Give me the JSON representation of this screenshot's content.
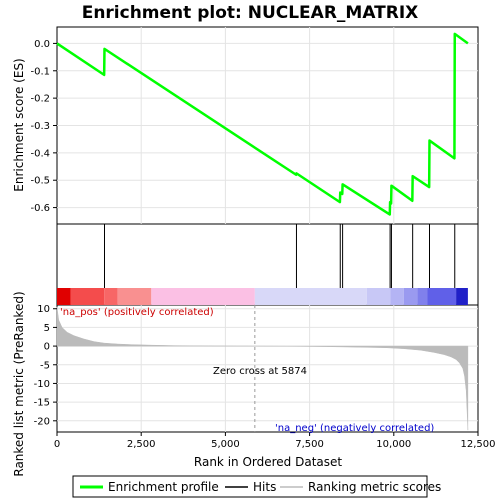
{
  "chart_data": {
    "type": "line",
    "title": "Enrichment plot: NUCLEAR_MATRIX",
    "xlabel": "Rank in Ordered Dataset",
    "xlim": [
      0,
      12500
    ],
    "x_ticks": [
      0,
      2500,
      5000,
      7500,
      10000,
      12500
    ],
    "x_tick_labels": [
      "0",
      "2,500",
      "5,000",
      "7,500",
      "10,000",
      "12,500"
    ],
    "es_panel": {
      "ylabel": "Enrichment score (ES)",
      "ylim": [
        -0.66,
        0.06
      ],
      "y_ticks": [
        0.0,
        -0.1,
        -0.2,
        -0.3,
        -0.4,
        -0.5,
        -0.6
      ],
      "y_tick_labels": [
        "0.0",
        "-0.1",
        "-0.2",
        "-0.3",
        "-0.4",
        "-0.5",
        "-0.6"
      ],
      "series": [
        {
          "name": "Enrichment profile",
          "color": "#00ff00",
          "x": [
            0,
            1400,
            1410,
            7100,
            7110,
            8400,
            8410,
            8470,
            8480,
            9880,
            9890,
            9920,
            9930,
            10550,
            10560,
            11050,
            11060,
            11800,
            11810,
            12200
          ],
          "y": [
            0.0,
            -0.115,
            -0.02,
            -0.48,
            -0.475,
            -0.58,
            -0.545,
            -0.55,
            -0.515,
            -0.625,
            -0.58,
            -0.585,
            -0.52,
            -0.575,
            -0.485,
            -0.525,
            -0.355,
            -0.42,
            0.035,
            0.0
          ]
        }
      ]
    },
    "hits": {
      "name": "Hits",
      "color": "#000000",
      "x": [
        1410,
        7110,
        8410,
        8480,
        9890,
        9930,
        10560,
        11060,
        11810
      ]
    },
    "rank_bar": {
      "segments": [
        {
          "from": 0,
          "to": 400,
          "color": "#e00000"
        },
        {
          "from": 400,
          "to": 1400,
          "color": "#f44c4c"
        },
        {
          "from": 1400,
          "to": 1800,
          "color": "#f76666"
        },
        {
          "from": 1800,
          "to": 2800,
          "color": "#f99090"
        },
        {
          "from": 2800,
          "to": 5874,
          "color": "#fbc0e4"
        },
        {
          "from": 5874,
          "to": 9200,
          "color": "#d8d8f8"
        },
        {
          "from": 9200,
          "to": 9900,
          "color": "#c8c8f6"
        },
        {
          "from": 9900,
          "to": 10300,
          "color": "#b4b4f4"
        },
        {
          "from": 10300,
          "to": 10700,
          "color": "#9a9af0"
        },
        {
          "from": 10700,
          "to": 11000,
          "color": "#8080ec"
        },
        {
          "from": 11000,
          "to": 11850,
          "color": "#6060e8"
        },
        {
          "from": 11850,
          "to": 12200,
          "color": "#2020c8"
        }
      ]
    },
    "metric_panel": {
      "ylabel": "Ranked list metric (PreRanked)",
      "ylim": [
        -23,
        11
      ],
      "y_ticks": [
        10,
        5,
        0,
        -5,
        -10,
        -15,
        -20
      ],
      "y_tick_labels": [
        "10",
        "5",
        "0",
        "-5",
        "-10",
        "-15",
        "-20"
      ],
      "series": [
        {
          "name": "Ranking metric scores",
          "color": "#bbbbbb",
          "x": [
            0,
            50,
            150,
            300,
            500,
            800,
            1100,
            1400,
            1800,
            2200,
            2800,
            3500,
            4500,
            5874,
            7000,
            8000,
            9000,
            9800,
            10300,
            10800,
            11200,
            11500,
            11700,
            11850,
            11950,
            12050,
            12100,
            12150,
            12200
          ],
          "y": [
            10.5,
            7.0,
            5.0,
            3.7,
            2.8,
            1.9,
            1.2,
            0.8,
            0.55,
            0.4,
            0.25,
            0.12,
            0.05,
            0.0,
            -0.05,
            -0.15,
            -0.3,
            -0.45,
            -0.7,
            -1.1,
            -1.7,
            -2.3,
            -2.9,
            -3.6,
            -4.5,
            -6.0,
            -8.0,
            -12.0,
            -22.5
          ]
        }
      ],
      "zero_cross": 5874,
      "annotations": {
        "pos": "'na_pos' (positively correlated)",
        "neg": "'na_neg' (negatively correlated)",
        "zero": "Zero cross at 5874"
      }
    },
    "legend": [
      {
        "label": "Enrichment profile",
        "color": "#00ff00"
      },
      {
        "label": "Hits",
        "color": "#000000"
      },
      {
        "label": "Ranking metric scores",
        "color": "#bbbbbb"
      }
    ]
  }
}
